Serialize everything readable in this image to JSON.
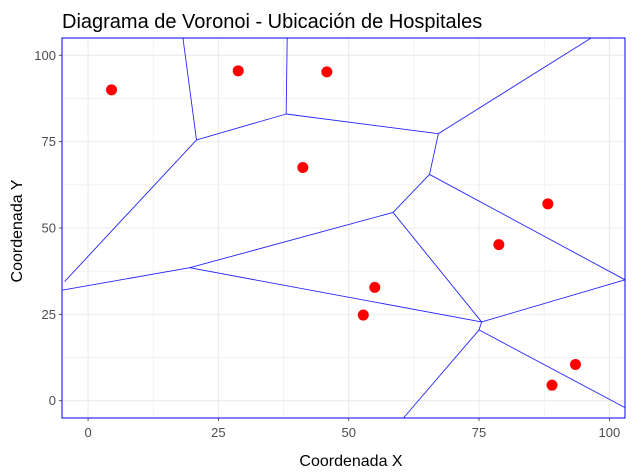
{
  "chart_data": {
    "type": "scatter",
    "title": "Diagrama de Voronoi - Ubicación de Hospitales",
    "xlabel": "Coordenada X",
    "ylabel": "Coordenada Y",
    "xlim": [
      -5,
      103
    ],
    "ylim": [
      -5,
      105
    ],
    "xticks": [
      0,
      25,
      50,
      75,
      100
    ],
    "yticks": [
      0,
      25,
      50,
      75,
      100
    ],
    "xtick_labels": [
      "0",
      "25",
      "50",
      "75",
      "100"
    ],
    "ytick_labels": [
      "0",
      "25",
      "50",
      "75",
      "100"
    ],
    "grid": true,
    "background": "#ffffff",
    "grid_color": "#ebebeb",
    "point_color": "#ff0000",
    "edge_color": "#0000ff",
    "points": [
      {
        "x": 4.5,
        "y": 90.0
      },
      {
        "x": 28.8,
        "y": 95.5
      },
      {
        "x": 45.8,
        "y": 95.2
      },
      {
        "x": 41.2,
        "y": 67.5
      },
      {
        "x": 78.8,
        "y": 45.2
      },
      {
        "x": 88.2,
        "y": 57.0
      },
      {
        "x": 55.0,
        "y": 32.8
      },
      {
        "x": 52.8,
        "y": 24.8
      },
      {
        "x": 93.5,
        "y": 10.5
      },
      {
        "x": 89.0,
        "y": 4.5
      }
    ],
    "voronoi_edges": [
      [
        [
          -4.5,
          34.5
        ],
        [
          20.8,
          75.5
        ]
      ],
      [
        [
          20.8,
          75.5
        ],
        [
          18.2,
          105.0
        ]
      ],
      [
        [
          20.8,
          75.5
        ],
        [
          38.0,
          83.0
        ]
      ],
      [
        [
          38.0,
          83.0
        ],
        [
          38.2,
          105.0
        ]
      ],
      [
        [
          38.0,
          83.0
        ],
        [
          67.2,
          77.3
        ]
      ],
      [
        [
          67.2,
          77.3
        ],
        [
          96.5,
          105.0
        ]
      ],
      [
        [
          67.2,
          77.3
        ],
        [
          65.5,
          65.5
        ]
      ],
      [
        [
          65.5,
          65.5
        ],
        [
          58.5,
          54.5
        ]
      ],
      [
        [
          65.5,
          65.5
        ],
        [
          103.0,
          35.0
        ]
      ],
      [
        [
          58.5,
          54.5
        ],
        [
          19.5,
          38.5
        ]
      ],
      [
        [
          19.5,
          38.5
        ],
        [
          -5.0,
          32.0
        ]
      ],
      [
        [
          58.5,
          54.5
        ],
        [
          75.5,
          22.8
        ]
      ],
      [
        [
          19.5,
          38.5
        ],
        [
          75.5,
          22.8
        ]
      ],
      [
        [
          75.5,
          22.8
        ],
        [
          103.0,
          35.0
        ]
      ],
      [
        [
          75.5,
          22.8
        ],
        [
          75.0,
          20.5
        ]
      ],
      [
        [
          75.0,
          20.5
        ],
        [
          60.5,
          -5.0
        ]
      ],
      [
        [
          75.0,
          20.5
        ],
        [
          103.0,
          -2.0
        ]
      ]
    ]
  }
}
